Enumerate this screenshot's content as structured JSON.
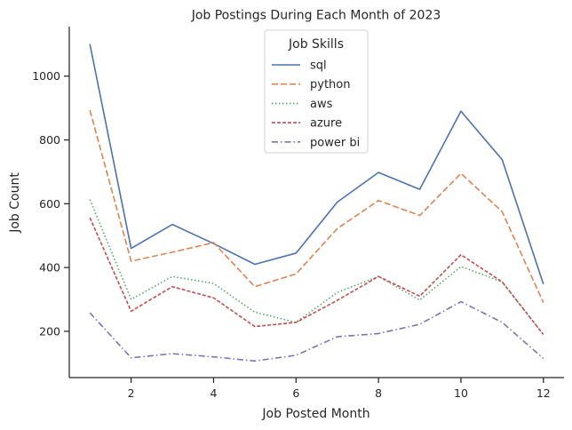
{
  "chart_data": {
    "type": "line",
    "title": "Job Postings During Each Month of 2023",
    "xlabel": "Job Posted Month",
    "ylabel": "Job Count",
    "xlim": [
      0.5,
      12.5
    ],
    "ylim": [
      55,
      1155
    ],
    "xticks": [
      2,
      4,
      6,
      8,
      10,
      12
    ],
    "yticks": [
      200,
      400,
      600,
      800,
      1000
    ],
    "grid": false,
    "legend": {
      "title": "Job Skills",
      "placement": "top-center"
    },
    "x": [
      1,
      2,
      3,
      4,
      5,
      6,
      7,
      8,
      9,
      10,
      11,
      12
    ],
    "series": [
      {
        "name": "sql",
        "color": "#4c72b0",
        "dash": "solid",
        "values": [
          1100,
          460,
          535,
          475,
          410,
          445,
          605,
          698,
          645,
          890,
          738,
          348
        ]
      },
      {
        "name": "python",
        "color": "#dd8452",
        "dash": "dashed",
        "values": [
          893,
          420,
          448,
          478,
          340,
          380,
          522,
          610,
          563,
          695,
          575,
          290
        ]
      },
      {
        "name": "aws",
        "color": "#55a868",
        "dash": "dotted",
        "values": [
          613,
          300,
          372,
          350,
          260,
          228,
          322,
          372,
          298,
          403,
          355,
          190
        ]
      },
      {
        "name": "azure",
        "color": "#c44e52",
        "dash": "dense-dashed",
        "values": [
          556,
          263,
          340,
          305,
          215,
          228,
          297,
          372,
          310,
          440,
          355,
          190
        ]
      },
      {
        "name": "power bi",
        "color": "#8172b3",
        "dash": "dashdot",
        "values": [
          258,
          117,
          130,
          120,
          107,
          125,
          183,
          193,
          222,
          293,
          228,
          115
        ]
      }
    ]
  }
}
